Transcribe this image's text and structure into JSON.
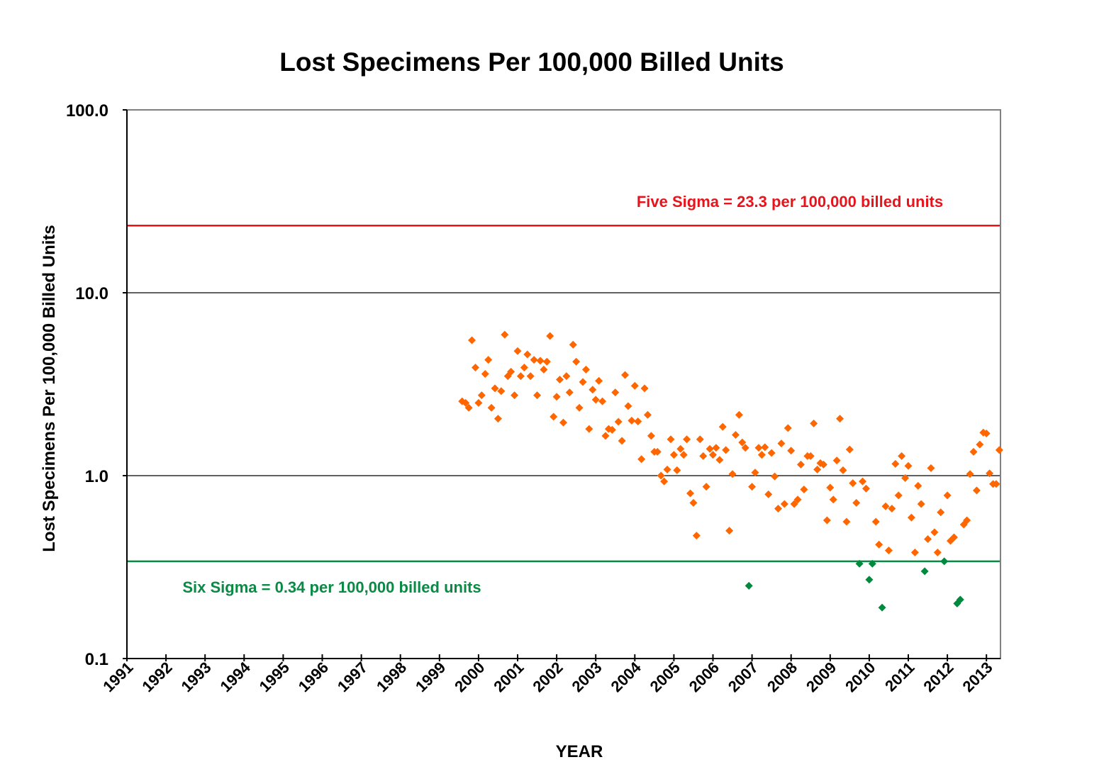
{
  "chart_data": {
    "type": "scatter",
    "title": "Lost Specimens Per 100,000 Billed Units",
    "xlabel": "YEAR",
    "ylabel": "Lost Specimens Per 100,000 Billed Units",
    "y_scale": "log",
    "xlim": [
      1991,
      2013.4
    ],
    "ylim": [
      0.1,
      100
    ],
    "x_ticks": [
      "1991",
      "1992",
      "1993",
      "1994",
      "1995",
      "1996",
      "1997",
      "1998",
      "1999",
      "2000",
      "2001",
      "2002",
      "2003",
      "2004",
      "2005",
      "2006",
      "2007",
      "2008",
      "2009",
      "2010",
      "2011",
      "2012",
      "2013"
    ],
    "y_ticks": [
      "0.1",
      "1.0",
      "10.0",
      "100.0"
    ],
    "grid": "horizontal major gridlines",
    "legend": "none",
    "colors": {
      "points_above": "#ff6600",
      "points_below": "#008a3e",
      "five_sigma_line": "#ee1111",
      "six_sigma_line": "#0a8a45",
      "five_sigma_label": "#e8141c",
      "six_sigma_label": "#0a8a45",
      "axes": "#000000",
      "plot_border": "#808080",
      "gridlines": "#000000"
    },
    "reference_lines": [
      {
        "label": "Five Sigma = 23.3 per 100,000 billed units",
        "value": 23.3,
        "color_key": "five_sigma_line"
      },
      {
        "label": "Six Sigma = 0.34 per 100,000 billed units",
        "value": 0.34,
        "color_key": "six_sigma_line"
      }
    ],
    "series": [
      {
        "marker": "diamond",
        "color_key": "points_above",
        "points": [
          [
            1999.58,
            2.55
          ],
          [
            1999.67,
            2.5
          ],
          [
            1999.75,
            2.35
          ],
          [
            1999.83,
            5.5
          ],
          [
            1999.92,
            3.9
          ],
          [
            2000.0,
            2.5
          ],
          [
            2000.08,
            2.75
          ],
          [
            2000.17,
            3.6
          ],
          [
            2000.25,
            4.3
          ],
          [
            2000.33,
            2.35
          ],
          [
            2000.42,
            3.0
          ],
          [
            2000.5,
            2.05
          ],
          [
            2000.58,
            2.9
          ],
          [
            2000.67,
            5.9
          ],
          [
            2000.75,
            3.5
          ],
          [
            2000.83,
            3.7
          ],
          [
            2000.92,
            2.75
          ],
          [
            2001.0,
            4.8
          ],
          [
            2001.08,
            3.5
          ],
          [
            2001.17,
            3.9
          ],
          [
            2001.25,
            4.6
          ],
          [
            2001.33,
            3.5
          ],
          [
            2001.42,
            4.3
          ],
          [
            2001.5,
            2.75
          ],
          [
            2001.58,
            4.25
          ],
          [
            2001.67,
            3.8
          ],
          [
            2001.75,
            4.2
          ],
          [
            2001.83,
            5.8
          ],
          [
            2001.92,
            2.1
          ],
          [
            2002.0,
            2.7
          ],
          [
            2002.08,
            3.35
          ],
          [
            2002.17,
            1.95
          ],
          [
            2002.25,
            3.5
          ],
          [
            2002.33,
            2.85
          ],
          [
            2002.42,
            5.2
          ],
          [
            2002.5,
            4.2
          ],
          [
            2002.58,
            2.35
          ],
          [
            2002.67,
            3.25
          ],
          [
            2002.75,
            3.8
          ],
          [
            2002.83,
            1.8
          ],
          [
            2002.92,
            2.95
          ],
          [
            2003.0,
            2.6
          ],
          [
            2003.08,
            3.3
          ],
          [
            2003.17,
            2.55
          ],
          [
            2003.25,
            1.65
          ],
          [
            2003.33,
            1.8
          ],
          [
            2003.42,
            1.78
          ],
          [
            2003.5,
            2.85
          ],
          [
            2003.58,
            1.97
          ],
          [
            2003.67,
            1.55
          ],
          [
            2003.75,
            3.55
          ],
          [
            2003.83,
            2.4
          ],
          [
            2003.92,
            2.0
          ],
          [
            2004.0,
            3.1
          ],
          [
            2004.08,
            1.98
          ],
          [
            2004.17,
            1.23
          ],
          [
            2004.25,
            3.0
          ],
          [
            2004.33,
            2.15
          ],
          [
            2004.42,
            1.65
          ],
          [
            2004.5,
            1.35
          ],
          [
            2004.58,
            1.35
          ],
          [
            2004.67,
            1.0
          ],
          [
            2004.75,
            0.93
          ],
          [
            2004.83,
            1.08
          ],
          [
            2004.92,
            1.58
          ],
          [
            2005.0,
            1.3
          ],
          [
            2005.08,
            1.07
          ],
          [
            2005.17,
            1.4
          ],
          [
            2005.25,
            1.3
          ],
          [
            2005.33,
            1.58
          ],
          [
            2005.42,
            0.8
          ],
          [
            2005.5,
            0.71
          ],
          [
            2005.58,
            0.47
          ],
          [
            2005.67,
            1.58
          ],
          [
            2005.75,
            1.28
          ],
          [
            2005.83,
            0.87
          ],
          [
            2005.92,
            1.4
          ],
          [
            2006.0,
            1.3
          ],
          [
            2006.08,
            1.42
          ],
          [
            2006.17,
            1.22
          ],
          [
            2006.25,
            1.85
          ],
          [
            2006.33,
            1.38
          ],
          [
            2006.42,
            0.5
          ],
          [
            2006.5,
            1.02
          ],
          [
            2006.58,
            1.67
          ],
          [
            2006.67,
            2.15
          ],
          [
            2006.75,
            1.52
          ],
          [
            2006.83,
            1.42
          ],
          [
            2007.0,
            0.87
          ],
          [
            2007.08,
            1.04
          ],
          [
            2007.17,
            1.42
          ],
          [
            2007.25,
            1.3
          ],
          [
            2007.33,
            1.43
          ],
          [
            2007.42,
            0.79
          ],
          [
            2007.5,
            1.33
          ],
          [
            2007.58,
            0.99
          ],
          [
            2007.67,
            0.66
          ],
          [
            2007.75,
            1.5
          ],
          [
            2007.83,
            0.7
          ],
          [
            2007.92,
            1.82
          ],
          [
            2008.0,
            1.37
          ],
          [
            2008.08,
            0.7
          ],
          [
            2008.17,
            0.74
          ],
          [
            2008.25,
            1.15
          ],
          [
            2008.33,
            0.84
          ],
          [
            2008.42,
            1.28
          ],
          [
            2008.5,
            1.28
          ],
          [
            2008.58,
            1.93
          ],
          [
            2008.67,
            1.08
          ],
          [
            2008.75,
            1.17
          ],
          [
            2008.83,
            1.15
          ],
          [
            2008.92,
            0.57
          ],
          [
            2009.0,
            0.86
          ],
          [
            2009.08,
            0.74
          ],
          [
            2009.17,
            1.21
          ],
          [
            2009.25,
            2.05
          ],
          [
            2009.33,
            1.07
          ],
          [
            2009.42,
            0.56
          ],
          [
            2009.5,
            1.39
          ],
          [
            2009.58,
            0.91
          ],
          [
            2009.67,
            0.71
          ],
          [
            2009.83,
            0.93
          ],
          [
            2009.92,
            0.85
          ],
          [
            2010.17,
            0.56
          ],
          [
            2010.25,
            0.42
          ],
          [
            2010.42,
            0.68
          ],
          [
            2010.5,
            0.39
          ],
          [
            2010.58,
            0.66
          ],
          [
            2010.67,
            1.16
          ],
          [
            2010.75,
            0.78
          ],
          [
            2010.83,
            1.28
          ],
          [
            2010.92,
            0.97
          ],
          [
            2011.0,
            1.13
          ],
          [
            2011.08,
            0.59
          ],
          [
            2011.17,
            0.38
          ],
          [
            2011.25,
            0.88
          ],
          [
            2011.33,
            0.7
          ],
          [
            2011.5,
            0.45
          ],
          [
            2011.58,
            1.1
          ],
          [
            2011.67,
            0.49
          ],
          [
            2011.75,
            0.38
          ],
          [
            2011.83,
            0.63
          ],
          [
            2012.0,
            0.78
          ],
          [
            2012.08,
            0.44
          ],
          [
            2012.17,
            0.46
          ],
          [
            2012.42,
            0.54
          ],
          [
            2012.5,
            0.57
          ],
          [
            2012.58,
            1.02
          ],
          [
            2012.67,
            1.35
          ],
          [
            2012.75,
            0.83
          ],
          [
            2012.83,
            1.48
          ],
          [
            2012.92,
            1.72
          ],
          [
            2013.0,
            1.7
          ],
          [
            2013.08,
            1.03
          ],
          [
            2013.17,
            0.9
          ],
          [
            2013.25,
            0.9
          ],
          [
            2013.33,
            1.38
          ]
        ]
      },
      {
        "marker": "diamond",
        "color_key": "points_below",
        "points": [
          [
            2006.92,
            0.25
          ],
          [
            2009.75,
            0.33
          ],
          [
            2010.0,
            0.27
          ],
          [
            2010.08,
            0.33
          ],
          [
            2010.33,
            0.19
          ],
          [
            2011.42,
            0.3
          ],
          [
            2011.92,
            0.34
          ],
          [
            2012.25,
            0.2
          ],
          [
            2012.33,
            0.21
          ]
        ]
      }
    ]
  }
}
